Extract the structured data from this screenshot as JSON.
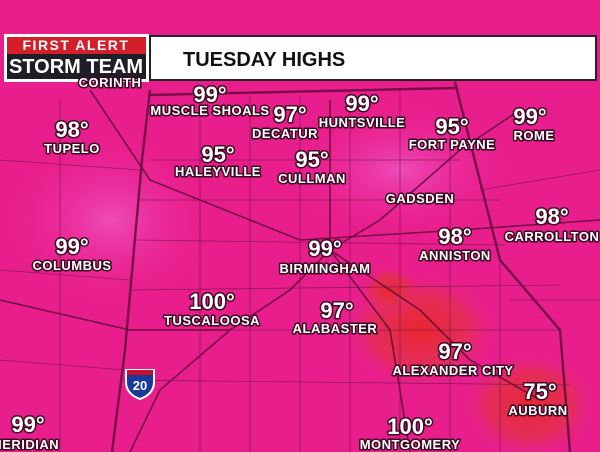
{
  "header": {
    "logo_top": "FIRST ALERT",
    "logo_bottom": "STORM TEAM",
    "title": "TUESDAY HIGHS"
  },
  "cities": [
    {
      "name": "CORINTH"
    },
    {
      "name": "MUSCLE SHOALS",
      "temp": "99°"
    },
    {
      "name": "DECATUR",
      "temp": "97°"
    },
    {
      "name": "HUNTSVILLE",
      "temp": "99°"
    },
    {
      "name": "FORT PAYNE",
      "temp": "95°"
    },
    {
      "name": "ROME",
      "temp": "99°"
    },
    {
      "name": "TUPELO",
      "temp": "98°"
    },
    {
      "name": "HALEYVILLE",
      "temp": "95°"
    },
    {
      "name": "CULLMAN",
      "temp": "95°"
    },
    {
      "name": "GADSDEN"
    },
    {
      "name": "CARROLLTON",
      "temp": "98°"
    },
    {
      "name": "ANNISTON",
      "temp": "98°"
    },
    {
      "name": "COLUMBUS",
      "temp": "99°"
    },
    {
      "name": "BIRMINGHAM",
      "temp": "99°"
    },
    {
      "name": "TUSCALOOSA",
      "temp": "100°"
    },
    {
      "name": "ALABASTER",
      "temp": "97°"
    },
    {
      "name": "ALEXANDER CITY",
      "temp": "97°"
    },
    {
      "name": "AUBURN",
      "temp": "75°"
    },
    {
      "name": "MERIDIAN",
      "temp": "99°"
    },
    {
      "name": "MONTGOMERY",
      "temp": "100°"
    }
  ],
  "interstate": "20"
}
